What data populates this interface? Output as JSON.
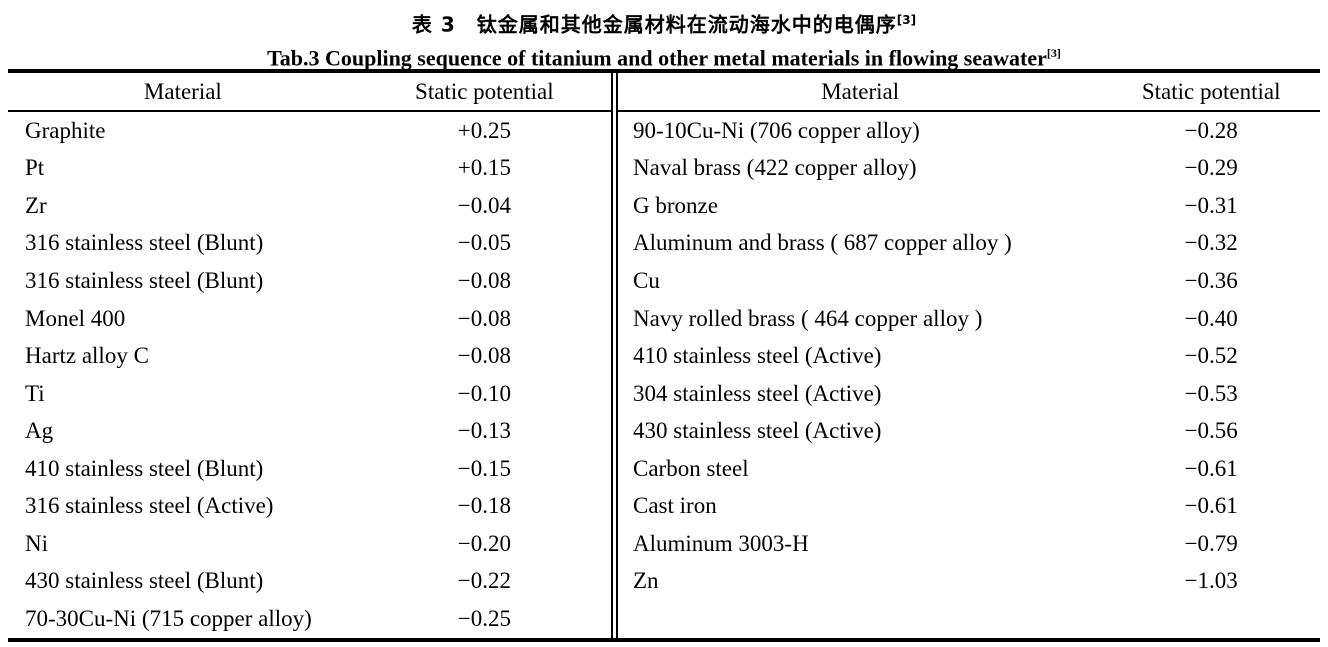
{
  "caption": {
    "zh": "表 3　钛金属和其他金属材料在流动海水中的电偶序",
    "zh_sup": "[3]",
    "en": "Tab.3 Coupling sequence of titanium and other metal materials in flowing seawater",
    "en_sup": "[3]"
  },
  "table": {
    "column_headers": {
      "material": "Material",
      "potential": "Static potential"
    },
    "left_rows": [
      {
        "material": "Graphite",
        "potential": "+0.25"
      },
      {
        "material": "Pt",
        "potential": "+0.15"
      },
      {
        "material": "Zr",
        "potential": "−0.04"
      },
      {
        "material": "316 stainless steel (Blunt)",
        "potential": "−0.05"
      },
      {
        "material": "316 stainless steel (Blunt)",
        "potential": "−0.08"
      },
      {
        "material": "Monel 400",
        "potential": "−0.08"
      },
      {
        "material": "Hartz alloy C",
        "potential": "−0.08"
      },
      {
        "material": "Ti",
        "potential": "−0.10"
      },
      {
        "material": "Ag",
        "potential": "−0.13"
      },
      {
        "material": "410 stainless steel (Blunt)",
        "potential": "−0.15"
      },
      {
        "material": "316 stainless steel (Active)",
        "potential": "−0.18"
      },
      {
        "material": "Ni",
        "potential": "−0.20"
      },
      {
        "material": "430 stainless steel (Blunt)",
        "potential": "−0.22"
      },
      {
        "material": "70-30Cu-Ni (715 copper alloy)",
        "potential": "−0.25"
      }
    ],
    "right_rows": [
      {
        "material": "90-10Cu-Ni (706 copper alloy)",
        "potential": "−0.28"
      },
      {
        "material": "Naval brass (422 copper alloy)",
        "potential": "−0.29"
      },
      {
        "material": "G bronze",
        "potential": "−0.31"
      },
      {
        "material": "Aluminum and brass ( 687 copper alloy )",
        "potential": "−0.32"
      },
      {
        "material": "Cu",
        "potential": "−0.36"
      },
      {
        "material": "Navy rolled brass ( 464 copper alloy )",
        "potential": "−0.40"
      },
      {
        "material": "410 stainless steel (Active)",
        "potential": "−0.52"
      },
      {
        "material": "304 stainless steel (Active)",
        "potential": "−0.53"
      },
      {
        "material": "430 stainless steel (Active)",
        "potential": "−0.56"
      },
      {
        "material": "Carbon steel",
        "potential": "−0.61"
      },
      {
        "material": "Cast iron",
        "potential": "−0.61"
      },
      {
        "material": "Aluminum 3003-H",
        "potential": "−0.79"
      },
      {
        "material": "Zn",
        "potential": "−1.03"
      }
    ]
  },
  "colors": {
    "background": "#ffffff",
    "text": "#000000",
    "rule": "#000000"
  }
}
